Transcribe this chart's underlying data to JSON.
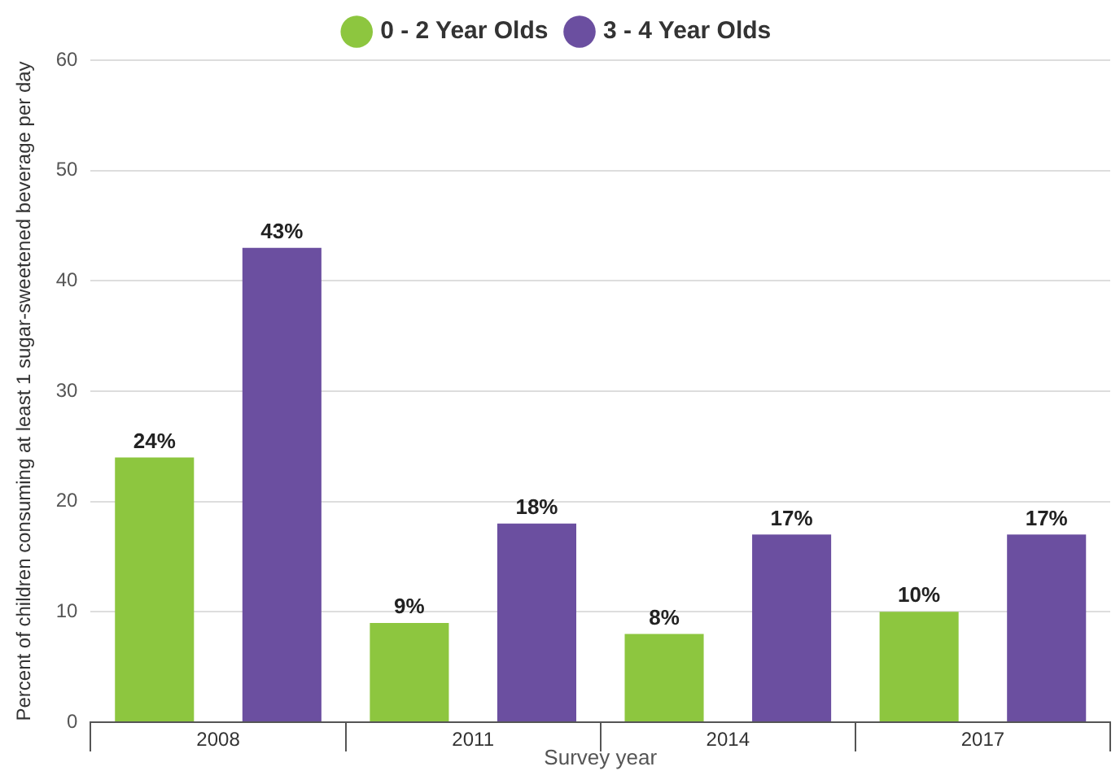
{
  "chart_data": {
    "type": "bar",
    "xlabel": "Survey year",
    "ylabel": "Percent of children consuming at least 1 sugar-sweetened beverage per day",
    "categories": [
      "2008",
      "2011",
      "2014",
      "2017"
    ],
    "series": [
      {
        "name": "0 - 2 Year Olds",
        "color": "#8dc63f",
        "values": [
          24,
          9,
          8,
          10
        ],
        "value_labels": [
          "24%",
          "9%",
          "8%",
          "10%"
        ]
      },
      {
        "name": "3 - 4 Year Olds",
        "color": "#6b4fa0",
        "values": [
          43,
          18,
          17,
          17
        ],
        "value_labels": [
          "43%",
          "18%",
          "17%",
          "17%"
        ]
      }
    ],
    "ylim": [
      0,
      60
    ],
    "yticks": [
      0,
      10,
      20,
      30,
      40,
      50,
      60
    ],
    "grid": "y",
    "legend": "top"
  }
}
